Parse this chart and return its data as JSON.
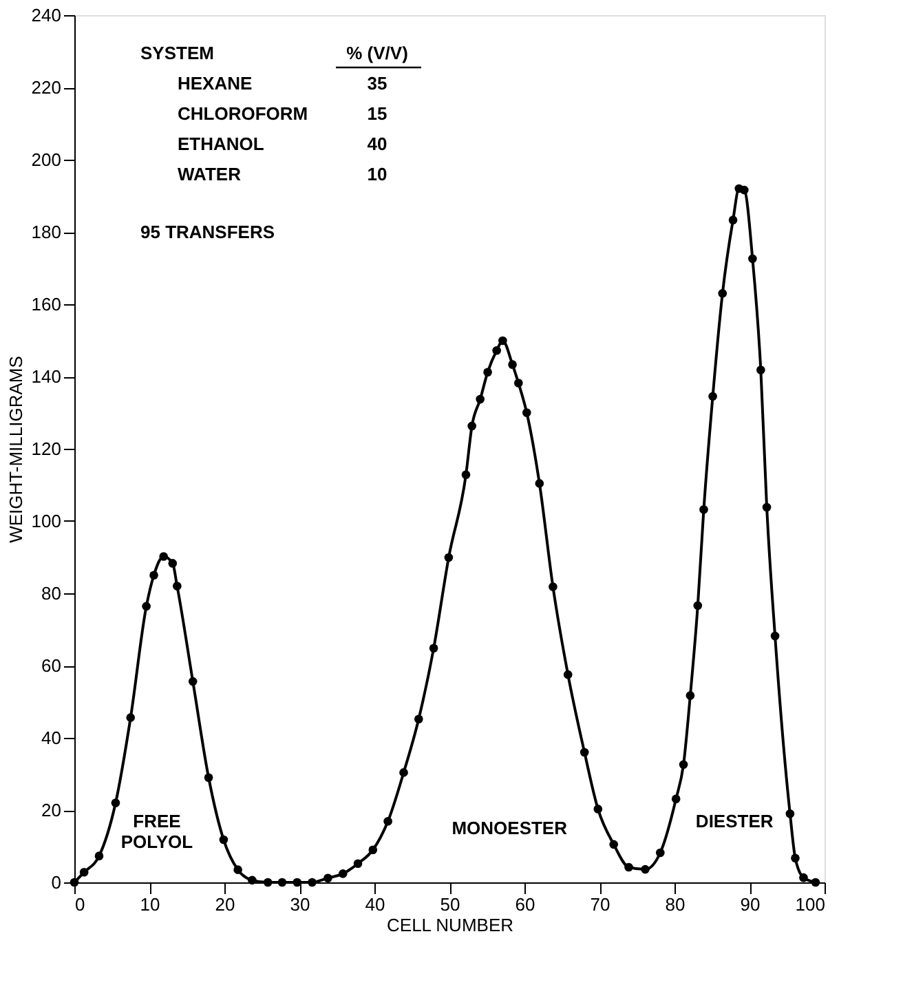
{
  "chart_data": {
    "type": "line",
    "xlabel": "CELL NUMBER",
    "ylabel": "WEIGHT-MILLIGRAMS",
    "x": [
      0,
      1.3,
      3.3,
      5.5,
      7.5,
      9.6,
      10.6,
      11.9,
      13.1,
      13.7,
      15.8,
      17.9,
      19.9,
      21.8,
      23.7,
      25.8,
      27.7,
      29.7,
      31.7,
      33.8,
      35.8,
      37.8,
      39.8,
      41.8,
      43.9,
      45.9,
      47.9,
      49.9,
      52.2,
      53.0,
      54.1,
      55.1,
      56.3,
      57.1,
      58.4,
      59.2,
      60.3,
      62.0,
      63.8,
      65.8,
      68.0,
      69.8,
      71.9,
      73.9,
      76.1,
      78.1,
      80.2,
      81.2,
      82.1,
      83.1,
      83.9,
      85.1,
      86.4,
      87.8,
      88.6,
      89.3,
      90.4,
      91.5,
      92.3,
      93.4,
      95.4,
      96.1,
      97.2,
      98.8
    ],
    "series": [
      {
        "color": "#000000",
        "values": [
          0,
          2.8,
          7.3,
          22,
          45.6,
          76.4,
          85,
          90.2,
          88.3,
          82,
          55.6,
          29,
          11.8,
          3.5,
          0.6,
          0,
          0,
          0,
          0,
          1.2,
          2.4,
          5.2,
          9,
          16.9,
          30.4,
          45.2,
          64.8,
          89.9,
          112.8,
          126.3,
          133.7,
          141.2,
          147.2,
          149.9,
          143.3,
          138.2,
          130,
          110.4,
          81.8,
          57.5,
          36,
          20.3,
          10.5,
          4.2,
          3.6,
          8.2,
          23.1,
          32.6,
          51.7,
          76.6,
          103.2,
          134.5,
          163,
          183.3,
          192,
          191.6,
          172.6,
          141.8,
          103.8,
          68.2,
          19,
          6.7,
          1.3,
          0
        ]
      }
    ],
    "marker": "circle",
    "line_style": "solid",
    "grid": false,
    "xlim": [
      0,
      100
    ],
    "xticks": [
      0,
      10,
      20,
      30,
      40,
      50,
      60,
      70,
      80,
      90,
      100
    ],
    "ylim": [
      0,
      240
    ],
    "yticks": [
      0,
      20,
      40,
      60,
      80,
      100,
      120,
      140,
      160,
      180,
      200,
      220,
      240
    ],
    "annotations": [
      "SYSTEM",
      "% (V/V)",
      "HEXANE",
      "35",
      "CHLOROFORM",
      "15",
      "ETHANOL",
      "40",
      "WATER",
      "10",
      "95 TRANSFERS",
      "FREE POLYOL",
      "MONOESTER",
      "DIESTER"
    ]
  }
}
